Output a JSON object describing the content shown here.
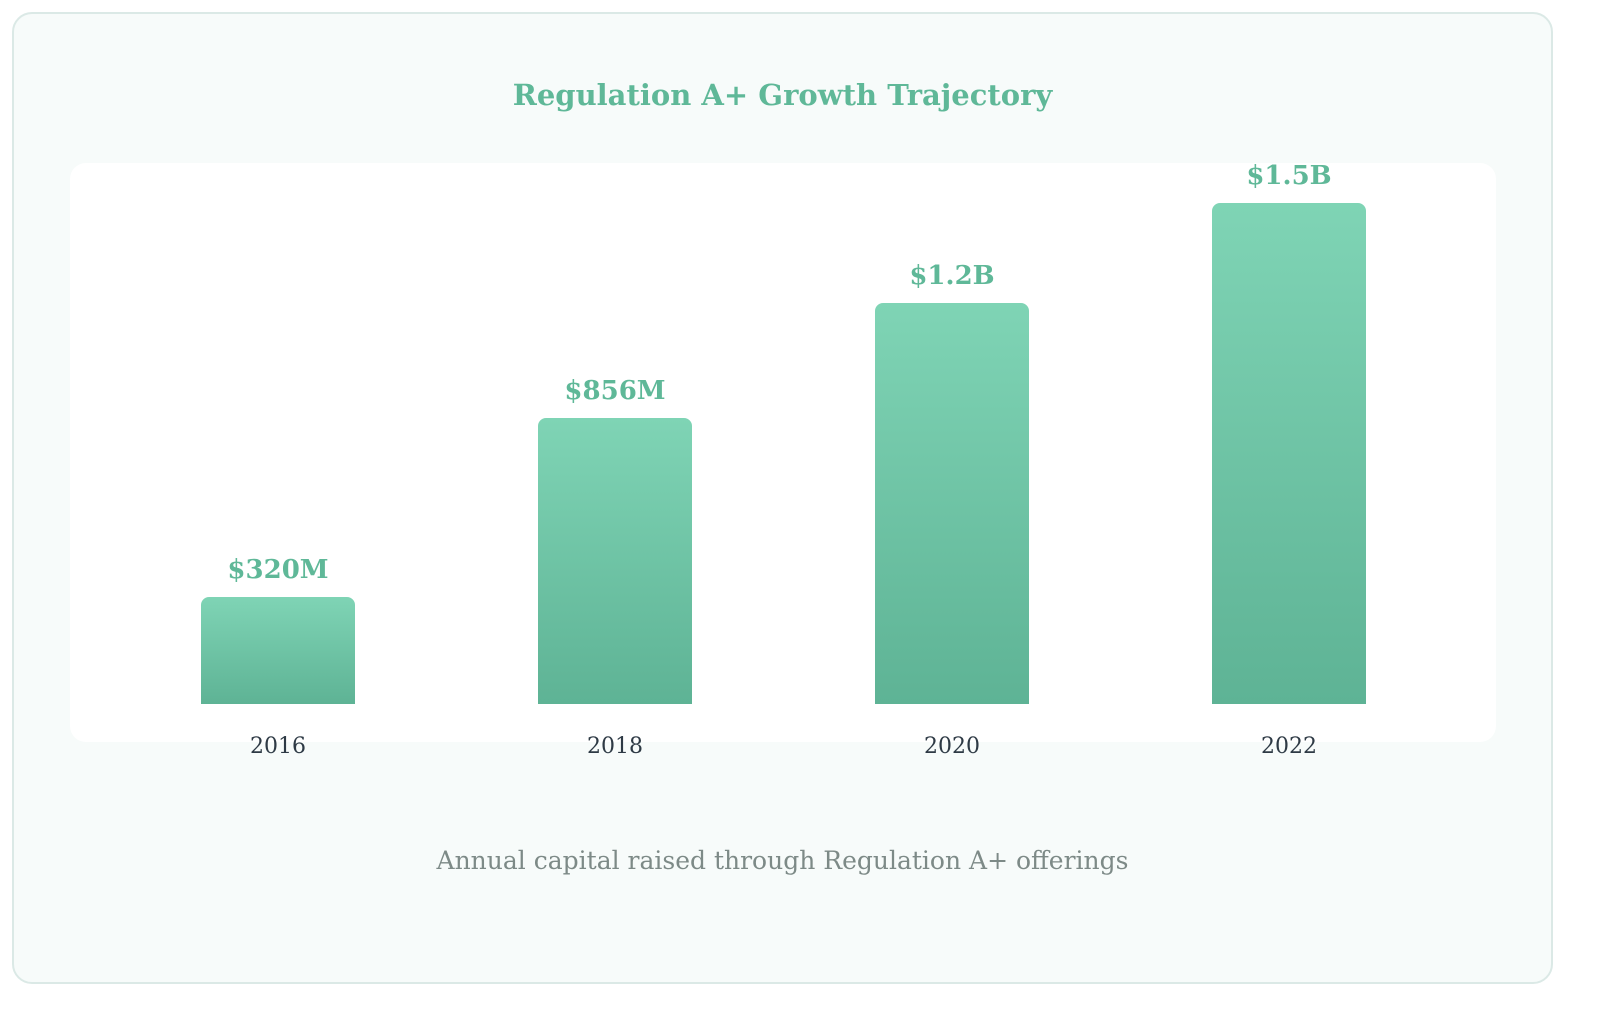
{
  "chart_data": {
    "type": "bar",
    "title": "Regulation A+ Growth Trajectory",
    "subtitle": "Annual capital raised through Regulation A+ offerings",
    "categories": [
      "2016",
      "2018",
      "2020",
      "2022"
    ],
    "values": [
      320,
      856,
      1200,
      1500
    ],
    "value_labels": [
      "$320M",
      "$856M",
      "$1.2B",
      "$1.5B"
    ],
    "value_unit": "millions USD",
    "colors": {
      "bar_top": "#7fd4b5",
      "bar_bottom": "#5eb395",
      "accent": "#5fb898"
    }
  }
}
